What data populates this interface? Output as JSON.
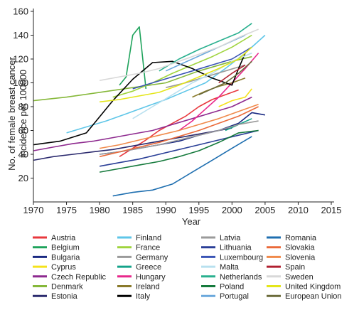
{
  "chart_data": {
    "type": "line",
    "xlabel": "Year",
    "ylabel": "No. of female breast cancer incidence per 100000",
    "ylabel_lines": [
      "No. of female breast cancer",
      "incidence per 100000"
    ],
    "xlim": [
      1970,
      2015
    ],
    "ylim": [
      0,
      160
    ],
    "xticks": [
      1970,
      1975,
      1980,
      1985,
      1990,
      1995,
      2000,
      2005,
      2010,
      2015
    ],
    "yticks": [
      20,
      40,
      60,
      80,
      100,
      120,
      140,
      160
    ],
    "grid": false,
    "legend_position": "bottom",
    "series": [
      {
        "name": "Austria",
        "color": "#e8383d",
        "x": [
          1983,
          1985,
          1987,
          1989,
          1991,
          1993,
          1995,
          1997,
          1999,
          2001
        ],
        "y": [
          38,
          45,
          52,
          60,
          66,
          72,
          80,
          86,
          90,
          94
        ]
      },
      {
        "name": "Belgium",
        "color": "#1fa35c",
        "x": [
          1983,
          1984,
          1985,
          1986,
          1987
        ],
        "y": [
          98,
          105,
          140,
          147,
          95
        ]
      },
      {
        "name": "Bulgaria",
        "color": "#1a2a82",
        "x": [
          1980,
          1983,
          1986,
          1989,
          1992,
          1995,
          1998,
          2001,
          2003,
          2005
        ],
        "y": [
          40,
          42,
          45,
          48,
          51,
          56,
          60,
          66,
          75,
          73
        ]
      },
      {
        "name": "Cyprus",
        "color": "#f5e21b",
        "x": [
          1998,
          2000,
          2002,
          2003
        ],
        "y": [
          80,
          85,
          88,
          95
        ]
      },
      {
        "name": "Czech Republic",
        "color": "#8e2a8f",
        "x": [
          1970,
          1973,
          1976,
          1979,
          1982,
          1985,
          1988,
          1991,
          1994,
          1997,
          2000,
          2003
        ],
        "y": [
          43,
          46,
          49,
          51,
          54,
          57,
          60,
          65,
          70,
          75,
          80,
          88
        ]
      },
      {
        "name": "Denmark",
        "color": "#86b83a",
        "x": [
          1970,
          1975,
          1980,
          1985,
          1990,
          1995,
          2000,
          2003
        ],
        "y": [
          85,
          88,
          92,
          96,
          100,
          110,
          118,
          122
        ]
      },
      {
        "name": "Estonia",
        "color": "#2b2a6e",
        "x": [
          1970,
          1973,
          1976,
          1979,
          1982,
          1985,
          1988,
          1991,
          1994,
          1997,
          2000
        ],
        "y": [
          35,
          38,
          40,
          42,
          44,
          47,
          50,
          53,
          56,
          59,
          62
        ]
      },
      {
        "name": "Finland",
        "color": "#5ec6e8",
        "x": [
          1975,
          1978,
          1981,
          1984,
          1987,
          1990,
          1993,
          1996,
          1999,
          2002,
          2005
        ],
        "y": [
          58,
          63,
          68,
          74,
          80,
          86,
          93,
          100,
          112,
          125,
          140
        ]
      },
      {
        "name": "France",
        "color": "#9fd43d",
        "x": [
          1982,
          1985,
          1988,
          1991,
          1994,
          1997,
          2000,
          2003
        ],
        "y": [
          88,
          93,
          100,
          108,
          115,
          122,
          130,
          140
        ]
      },
      {
        "name": "Germany",
        "color": "#9a9a9a",
        "x": [
          1990,
          1993,
          1996,
          1999,
          2002
        ],
        "y": [
          96,
          100,
          105,
          110,
          115
        ]
      },
      {
        "name": "Greece",
        "color": "#14a38a",
        "x": [
          1999,
          2001,
          2003
        ],
        "y": [
          60,
          65,
          70
        ]
      },
      {
        "name": "Hungary",
        "color": "#e8288c",
        "x": [
          1992,
          1994,
          1996,
          1998,
          2000,
          2002,
          2004
        ],
        "y": [
          60,
          68,
          78,
          88,
          100,
          112,
          125
        ]
      },
      {
        "name": "Ireland",
        "color": "#8a7a2b",
        "x": [
          1994,
          1996,
          1998,
          2000,
          2002
        ],
        "y": [
          88,
          93,
          97,
          100,
          104
        ]
      },
      {
        "name": "Italy",
        "color": "#000000",
        "x": [
          1970,
          1974,
          1978,
          1982,
          1985,
          1988,
          1991,
          1994,
          1997,
          2000,
          2001,
          2002
        ],
        "y": [
          48,
          51,
          58,
          85,
          103,
          117,
          118,
          112,
          104,
          98,
          112,
          125
        ]
      },
      {
        "name": "Latvia",
        "color": "#9a9a9a",
        "x": [
          1980,
          1983,
          1986,
          1989,
          1992,
          1995,
          1998,
          2001,
          2004
        ],
        "y": [
          40,
          42,
          45,
          48,
          52,
          56,
          60,
          65,
          68
        ]
      },
      {
        "name": "Lithuania",
        "color": "#2a3f97",
        "x": [
          1980,
          1983,
          1986,
          1989,
          1992,
          1995,
          1998,
          2001,
          2004
        ],
        "y": [
          30,
          33,
          36,
          40,
          44,
          48,
          52,
          56,
          60
        ]
      },
      {
        "name": "Luxembourg",
        "color": "#3a54b5",
        "x": [
          1985,
          1988,
          1991,
          1994,
          1997,
          2000,
          2003
        ],
        "y": [
          95,
          100,
          105,
          110,
          115,
          120,
          130
        ]
      },
      {
        "name": "Malta",
        "color": "#b8e0ef",
        "x": [
          1985,
          1988,
          1991,
          1994,
          1997,
          2000,
          2003
        ],
        "y": [
          70,
          80,
          90,
          100,
          108,
          118,
          125
        ]
      },
      {
        "name": "Netherlands",
        "color": "#2ab08f",
        "x": [
          1989,
          1992,
          1995,
          1998,
          2001,
          2003
        ],
        "y": [
          110,
          120,
          128,
          135,
          142,
          150
        ]
      },
      {
        "name": "Poland",
        "color": "#157a3c",
        "x": [
          1980,
          1983,
          1986,
          1989,
          1992,
          1995,
          1998,
          2001,
          2004
        ],
        "y": [
          25,
          28,
          31,
          34,
          38,
          43,
          50,
          58,
          60
        ]
      },
      {
        "name": "Portugal",
        "color": "#6aa8dc",
        "x": [
          1990,
          1992,
          1994,
          1996,
          1998,
          2000,
          2002
        ],
        "y": [
          110,
          115,
          120,
          125,
          130,
          135,
          140
        ]
      },
      {
        "name": "Romania",
        "color": "#1f6fb0",
        "x": [
          1982,
          1985,
          1988,
          1991,
          1994,
          1997,
          2000,
          2003
        ],
        "y": [
          5,
          8,
          10,
          15,
          25,
          35,
          45,
          55
        ]
      },
      {
        "name": "Slovakia",
        "color": "#ea6a3a",
        "x": [
          1980,
          1983,
          1986,
          1989,
          1992,
          1995,
          1998,
          2001,
          2004
        ],
        "y": [
          38,
          42,
          46,
          50,
          55,
          60,
          66,
          72,
          80
        ]
      },
      {
        "name": "Slovenia",
        "color": "#f08a4b",
        "x": [
          1980,
          1983,
          1986,
          1989,
          1992,
          1995,
          1998,
          2001,
          2004
        ],
        "y": [
          45,
          48,
          52,
          56,
          60,
          65,
          70,
          76,
          82
        ]
      },
      {
        "name": "Spain",
        "color": "#b02030",
        "x": [
          1998,
          2000,
          2002
        ],
        "y": [
          100,
          108,
          115
        ]
      },
      {
        "name": "Sweden",
        "color": "#d8d8d8",
        "x": [
          1980,
          1983,
          1986,
          1989,
          1992,
          1995,
          1998,
          2001,
          2004
        ],
        "y": [
          102,
          105,
          108,
          112,
          118,
          124,
          130,
          138,
          145
        ]
      },
      {
        "name": "United Kingdom",
        "color": "#e4e61a",
        "x": [
          1980,
          1983,
          1986,
          1989,
          1992,
          1995,
          1998,
          2001,
          2003
        ],
        "y": [
          84,
          86,
          89,
          92,
          98,
          105,
          112,
          120,
          130
        ]
      },
      {
        "name": "European Union",
        "color": "#6b6b3a",
        "x": [
          1995,
          1997,
          1999,
          2001,
          2003
        ],
        "y": [
          90,
          95,
          100,
          108,
          118
        ]
      }
    ]
  }
}
